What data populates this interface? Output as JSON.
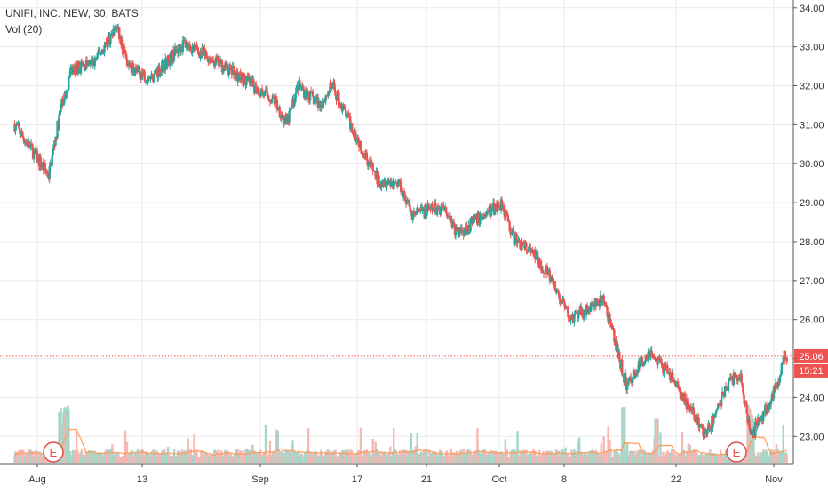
{
  "header": {
    "symbol_line": "UNIFI, INC. NEW, 30, BATS",
    "volume_line": "Vol (20)"
  },
  "price_axis": {
    "ticks": [
      "34.00",
      "33.00",
      "32.00",
      "31.00",
      "30.00",
      "29.00",
      "28.00",
      "27.00",
      "26.00",
      "25.00",
      "24.00",
      "23.00"
    ],
    "ymin": 22.3,
    "ymax": 34.2
  },
  "time_axis": {
    "labels": [
      "Aug",
      "13",
      "Sep",
      "17",
      "21",
      "Oct",
      "8",
      "22",
      "Nov"
    ]
  },
  "badges": {
    "last_price": "25.06",
    "countdown": "15:21"
  },
  "earnings_markers": [
    "E",
    "E"
  ],
  "colors": {
    "up": "#26a69a",
    "down": "#ef5350",
    "up_vol": "#a5d6c8",
    "down_vol": "#f7b7b3",
    "vol_ma": "#ff9a5a",
    "grid": "#e6e9ee",
    "price_line": "#ef5350"
  },
  "chart_data": {
    "type": "candlestick",
    "title": "UNIFI, INC. NEW, 30, BATS",
    "ylim": [
      22.3,
      34.2
    ],
    "last": 25.06,
    "anchors": [
      {
        "x": "Jul 30",
        "y": 31.0
      },
      {
        "x": "Aug 2",
        "y": 29.7
      },
      {
        "x": "Aug 3",
        "y": 31.3
      },
      {
        "x": "Aug 6",
        "y": 32.4
      },
      {
        "x": "Aug 8",
        "y": 32.6
      },
      {
        "x": "Aug 10",
        "y": 33.5
      },
      {
        "x": "Aug 13",
        "y": 32.5
      },
      {
        "x": "Aug 15",
        "y": 32.2
      },
      {
        "x": "Aug 20",
        "y": 33.1
      },
      {
        "x": "Aug 24",
        "y": 32.4
      },
      {
        "x": "Aug 30",
        "y": 31.6
      },
      {
        "x": "Aug 31",
        "y": 31.0
      },
      {
        "x": "Sep 4",
        "y": 32.0
      },
      {
        "x": "Sep 6",
        "y": 31.5
      },
      {
        "x": "Sep 7",
        "y": 32.0
      },
      {
        "x": "Sep 11",
        "y": 30.8
      },
      {
        "x": "Sep 13",
        "y": 29.6
      },
      {
        "x": "Sep 17",
        "y": 29.5
      },
      {
        "x": "Sep 18",
        "y": 28.7
      },
      {
        "x": "Sep 21",
        "y": 28.9
      },
      {
        "x": "Sep 24",
        "y": 28.2
      },
      {
        "x": "Sep 27",
        "y": 28.8
      },
      {
        "x": "Sep 28",
        "y": 29.0
      },
      {
        "x": "Oct 1",
        "y": 28.1
      },
      {
        "x": "Oct 3",
        "y": 27.6
      },
      {
        "x": "Oct 4",
        "y": 27.2
      },
      {
        "x": "Oct 8",
        "y": 26.0
      },
      {
        "x": "Oct 11",
        "y": 26.5
      },
      {
        "x": "Oct 15",
        "y": 24.3
      },
      {
        "x": "Oct 17",
        "y": 25.2
      },
      {
        "x": "Oct 19",
        "y": 24.5
      },
      {
        "x": "Oct 22",
        "y": 24.0
      },
      {
        "x": "Oct 24",
        "y": 23.0
      },
      {
        "x": "Oct 26",
        "y": 24.4
      },
      {
        "x": "Oct 29",
        "y": 24.6
      },
      {
        "x": "Oct 30",
        "y": 23.0
      },
      {
        "x": "Nov 1",
        "y": 24.1
      },
      {
        "x": "Nov 2",
        "y": 25.1
      }
    ]
  }
}
